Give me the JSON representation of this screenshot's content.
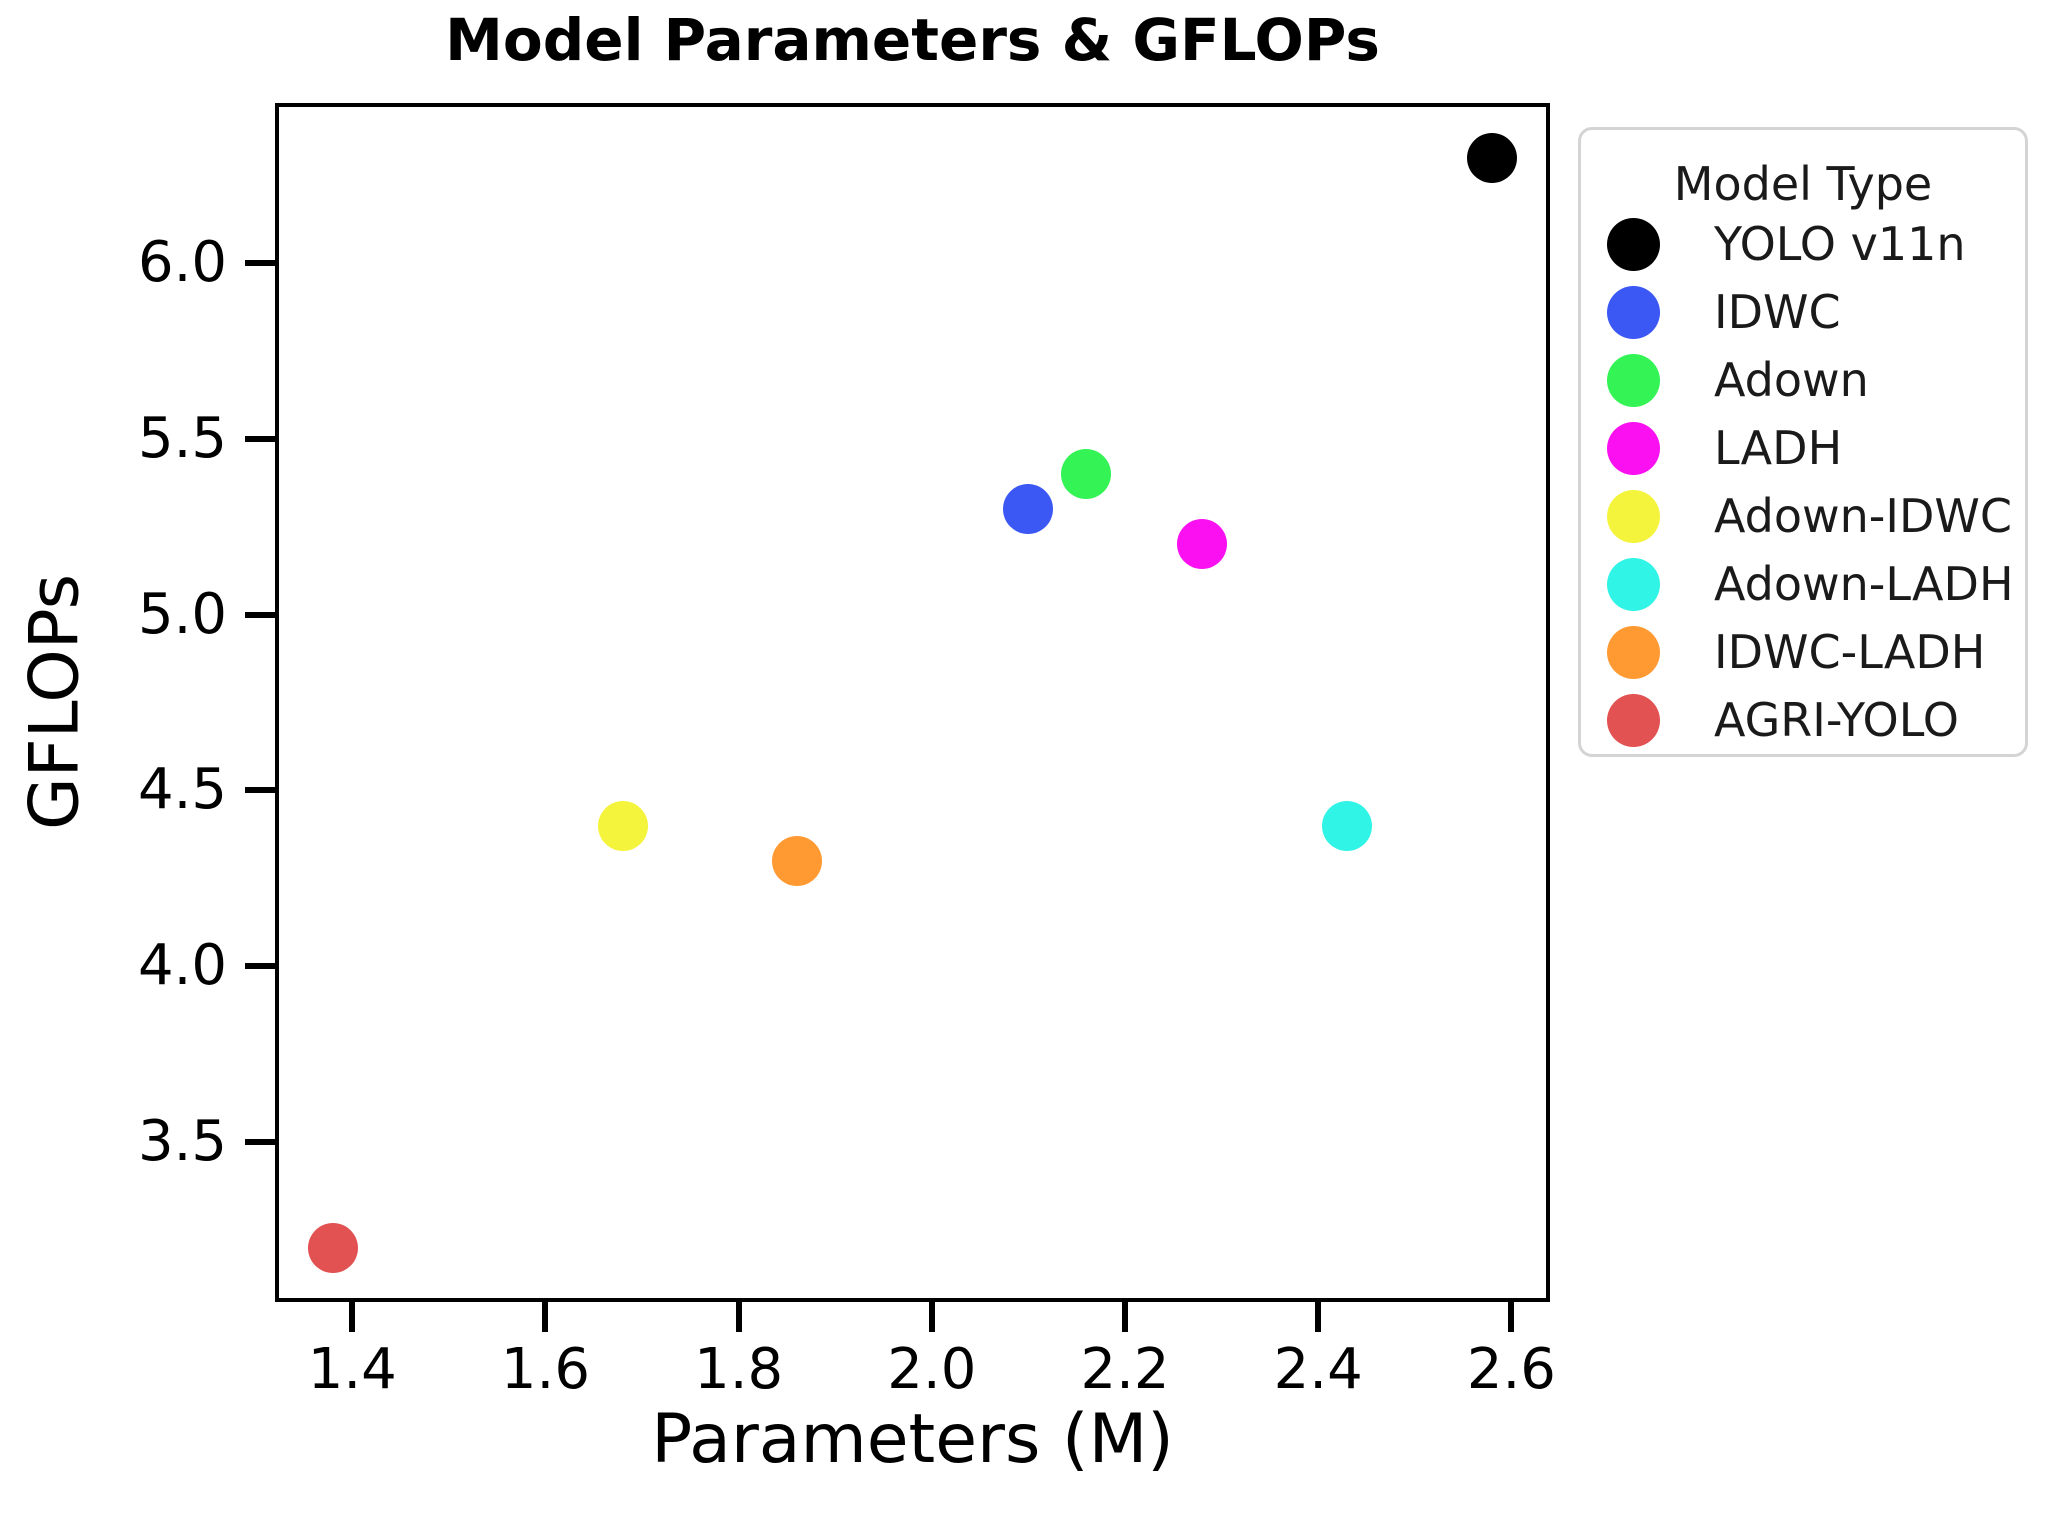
{
  "chart_data": {
    "type": "scatter",
    "title": "Model Parameters & GFLOPs",
    "xlabel": "Parameters (M)",
    "ylabel": "GFLOPs",
    "xlim": [
      1.32,
      2.64
    ],
    "ylim": [
      3.045,
      6.455
    ],
    "x_tick_values": [
      1.4,
      1.6,
      1.8,
      2.0,
      2.2,
      2.4,
      2.6
    ],
    "x_tick_labels": [
      "1.4",
      "1.6",
      "1.8",
      "2.0",
      "2.2",
      "2.4",
      "2.6"
    ],
    "y_tick_values": [
      3.5,
      4.0,
      4.5,
      5.0,
      5.5,
      6.0
    ],
    "y_tick_labels": [
      "3.5",
      "4.0",
      "4.5",
      "5.0",
      "5.5",
      "6.0"
    ],
    "grid": false,
    "marker_diameter_px": 50,
    "legend": {
      "title": "Model Type",
      "position": "outside-upper-right"
    },
    "series": [
      {
        "name": "YOLO v11n",
        "color": "#000000",
        "x": 2.58,
        "y": 6.3
      },
      {
        "name": "IDWC",
        "color": "#3B58F4",
        "x": 2.1,
        "y": 5.3
      },
      {
        "name": "Adown",
        "color": "#33F355",
        "x": 2.16,
        "y": 5.4
      },
      {
        "name": "LADH",
        "color": "#FA10F0",
        "x": 2.28,
        "y": 5.2
      },
      {
        "name": "Adown-IDWC",
        "color": "#F4F43C",
        "x": 1.68,
        "y": 4.4
      },
      {
        "name": "Adown-LADH",
        "color": "#30F4E6",
        "x": 2.43,
        "y": 4.4
      },
      {
        "name": "IDWC-LADH",
        "color": "#FF9A33",
        "x": 1.86,
        "y": 4.3
      },
      {
        "name": "AGRI-YOLO",
        "color": "#E25252",
        "x": 1.38,
        "y": 3.2
      }
    ]
  }
}
